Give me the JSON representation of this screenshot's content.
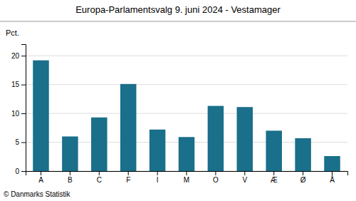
{
  "chart_data": {
    "type": "bar",
    "title": "Europa-Parlamentsvalg 9. juni 2024 - Vestamager",
    "ylabel": "Pct.",
    "footer": "© Danmarks Statistik",
    "categories": [
      "A",
      "B",
      "C",
      "F",
      "I",
      "M",
      "O",
      "V",
      "Æ",
      "Ø",
      "Å"
    ],
    "values": [
      19.2,
      6.0,
      9.3,
      15.1,
      7.2,
      5.9,
      11.3,
      11.1,
      7.0,
      5.7,
      2.6
    ],
    "color": "#1a6f8a",
    "ylim": [
      0,
      22
    ],
    "yticks": [
      0,
      5,
      10,
      15,
      20
    ],
    "grid": true
  }
}
